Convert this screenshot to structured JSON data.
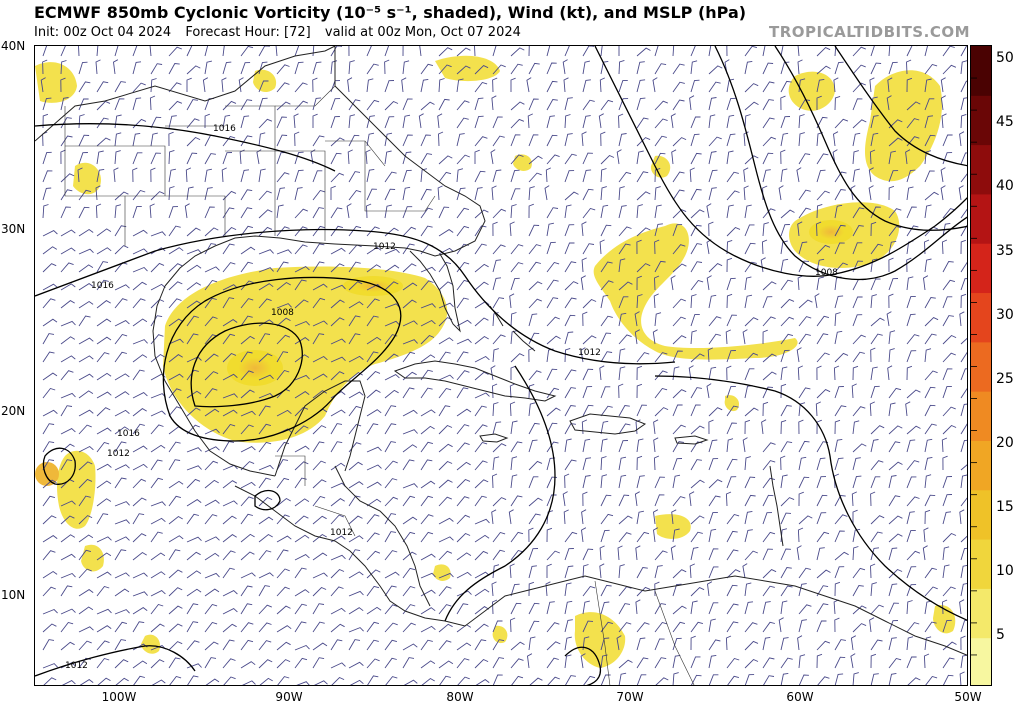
{
  "header": {
    "title": "ECMWF 850mb Cyclonic Vorticity (10⁻⁵ s⁻¹, shaded), Wind (kt), and MSLP (hPa)",
    "init": "Init: 00z Oct 04 2024",
    "forecast_hour": "Forecast Hour: [72]",
    "valid": "valid at 00z Mon, Oct 07 2024",
    "source": "TROPICALTIDBITS.COM"
  },
  "axes": {
    "lat_labels": [
      "40N",
      "30N",
      "20N",
      "10N"
    ],
    "lon_labels": [
      "100W",
      "90W",
      "80W",
      "70W",
      "60W",
      "50W"
    ]
  },
  "colorbar": {
    "labels": [
      "50",
      "45",
      "40",
      "35",
      "30",
      "25",
      "20",
      "15",
      "10",
      "5"
    ],
    "colors": [
      "#f7f7a0",
      "#f4e96a",
      "#f0d63c",
      "#efc228",
      "#f0a624",
      "#ef8a22",
      "#ec6a20",
      "#e4451d",
      "#d4241a",
      "#b41414",
      "#8e0c0c",
      "#6a0606",
      "#4a0202"
    ]
  },
  "isobars": [
    "1016",
    "1012",
    "1008",
    "1016",
    "1016",
    "1012",
    "1012",
    "1012",
    "1008",
    "1012"
  ],
  "colors": {
    "vorticity_light": "#f7f2a0",
    "vorticity_mid": "#f1dc2e",
    "vorticity_core": "#efc13a",
    "land_border": "#222222",
    "wind_barb": "#4a4a8a"
  }
}
